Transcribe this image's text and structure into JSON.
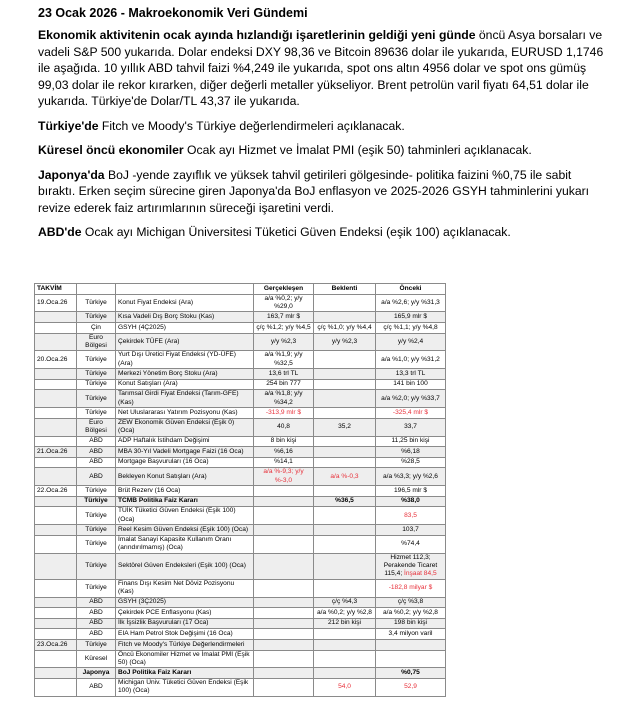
{
  "title": "23 Ocak 2026 - Makroekonomik Veri Gündemi",
  "p1": {
    "bold": "Ekonomik aktivitenin ocak ayında hızlandığı işaretlerinin geldiği yeni günde",
    "text": " öncü Asya borsaları ve vadeli S&P 500 yukarıda. Dolar endeksi DXY 98,36 ve Bitcoin 89636 dolar ile yukarıda, EURUSD 1,1746 ile aşağıda. 10 yıllık ABD tahvil faizi %4,249 ile yukarıda, spot ons altın 4956 dolar ve spot ons gümüş 99,03 dolar ile rekor kırarken, diğer değerli metaller yükseliyor. Brent petrolün varil fiyatı 64,51 dolar ile yukarıda. Türkiye'de Dolar/TL 43,37 ile yukarıda."
  },
  "p2": {
    "bold": "Türkiye'de",
    "text": " Fitch ve Moody's Türkiye değerlendirmeleri açıklanacak."
  },
  "p3": {
    "bold": "Küresel öncü ekonomiler",
    "text": " Ocak ayı Hizmet ve İmalat PMI (eşik 50) tahminleri açıklanacak."
  },
  "p4": {
    "bold": "Japonya'da",
    "text": " BoJ -yende zayıflık ve yüksek tahvil getirileri gölgesinde- politika faizini %0,75 ile sabit bıraktı. Erken seçim sürecine giren Japonya'da BoJ enflasyon ve 2025-2026 GSYH tahminlerini yukarı revize ederek faiz artırımlarının süreceği işaretini verdi."
  },
  "p5": {
    "bold": "ABD'de",
    "text": " Ocak ayı Michigan Üniversitesi Tüketici Güven Endeksi (eşik 100) açıklanacak."
  },
  "colors": {
    "red": "#e8303a",
    "shade": "#eeeeee"
  },
  "table": {
    "headers": [
      "TAKVİM",
      "",
      "",
      "Gerçekleşen",
      "Beklenti",
      "Önceki"
    ],
    "rows": [
      {
        "d": "19.Oca.26",
        "c": "Türkiye",
        "e": "Konut Fiyat Endeksi (Ara)",
        "a": "a/a %0,2; y/y %29,0",
        "x": "",
        "p": "a/a %2,6; y/y %31,3"
      },
      {
        "d": "",
        "c": "Türkiye",
        "e": "Kısa Vadeli Dış Borç Stoku (Kas)",
        "a": "163,7 mlr $",
        "x": "",
        "p": "165,9 mlr $"
      },
      {
        "d": "",
        "c": "Çin",
        "e": "GSYH (4Ç2025)",
        "a": "ç/ç %1,2; y/y %4,5",
        "x": "ç/ç %1,0; y/y %4,4",
        "p": "ç/ç %1,1; y/y %4,8"
      },
      {
        "d": "",
        "c": "Euro Bölgesi",
        "e": "Çekirdek TÜFE (Ara)",
        "a": "y/y %2,3",
        "x": "y/y %2,3",
        "p": "y/y %2,4"
      },
      {
        "d": "20.Oca.26",
        "c": "Türkiye",
        "e": "Yurt Dışı Üretici Fiyat Endeksi (YD-ÜFE) (Ara)",
        "a": "a/a %1,9; y/y %32,5",
        "x": "",
        "p": "a/a %1,0; y/y %31,2"
      },
      {
        "d": "",
        "c": "Türkiye",
        "e": "Merkezi Yönetim Borç Stoku (Ara)",
        "a": "13,6 trl TL",
        "x": "",
        "p": "13,3 trl TL"
      },
      {
        "d": "",
        "c": "Türkiye",
        "e": "Konut Satışları (Ara)",
        "a": "254 bin 777",
        "x": "",
        "p": "141 bin 100"
      },
      {
        "d": "",
        "c": "Türkiye",
        "e": "Tarımsal Girdi Fiyat Endeksi (Tarım-GFE) (Kas)",
        "a": "a/a %1,8; y/y %34,2",
        "x": "",
        "p": "a/a %2,0; y/y %33,7"
      },
      {
        "d": "",
        "c": "Türkiye",
        "e": "Net Uluslararası Yatırım Pozisyonu (Kas)",
        "a": "-313,9 mlr $",
        "x": "",
        "p": "-325,4 mlr $",
        "ra": true,
        "rp": true
      },
      {
        "d": "",
        "c": "Euro Bölgesi",
        "e": "ZEW Ekonomik Güven Endeksi (Eşik 0) (Oca)",
        "a": "40,8",
        "x": "35,2",
        "p": "33,7"
      },
      {
        "d": "",
        "c": "ABD",
        "e": "ADP Haftalık İstihdam Değişimi",
        "a": "8 bin kişi",
        "x": "",
        "p": "11,25 bin kişi"
      },
      {
        "d": "21.Oca.26",
        "c": "ABD",
        "e": "MBA 30-Yıl Vadeli Mortgage Faizi (16 Oca)",
        "a": "%6,16",
        "x": "",
        "p": "%6,18"
      },
      {
        "d": "",
        "c": "ABD",
        "e": "Mortgage Başvuruları (16 Oca)",
        "a": "%14,1",
        "x": "",
        "p": "%28,5"
      },
      {
        "d": "",
        "c": "ABD",
        "e": "Bekleyen Konut Satışları (Ara)",
        "a": "a/a %-9,3; y/y %-3,0",
        "x": "a/a %-0,3",
        "p": "a/a %3,3; y/y %2,6",
        "ra": true,
        "rx": true
      },
      {
        "d": "22.Oca.26",
        "c": "Türkiye",
        "e": "Brüt Rezerv (16 Oca)",
        "a": "",
        "x": "",
        "p": "196,5 mlr $"
      },
      {
        "d": "",
        "c": "Türkiye",
        "e": "TCMB Politika Faiz Kararı",
        "a": "",
        "x": "%36,5",
        "p": "%38,0",
        "b": true
      },
      {
        "d": "",
        "c": "Türkiye",
        "e": "TÜİK Tüketici Güven Endeksi (Eşik 100) (Oca)",
        "a": "",
        "x": "",
        "p": "83,5",
        "rp": true
      },
      {
        "d": "",
        "c": "Türkiye",
        "e": "Reel Kesim Güven Endeksi (Eşik 100) (Oca)",
        "a": "",
        "x": "",
        "p": "103,7"
      },
      {
        "d": "",
        "c": "Türkiye",
        "e": "İmalat Sanayi Kapasite Kullanım Oranı (arındırılmamış) (Oca)",
        "a": "",
        "x": "",
        "p": "%74,4"
      },
      {
        "d": "",
        "c": "Türkiye",
        "e": "Sektörel Güven Endeksleri (Eşik 100) (Oca)",
        "a": "",
        "x": "",
        "p": "Hizmet 112,3; Perakende Ticaret 115,4; ",
        "p2": "İnşaat 84,5"
      },
      {
        "d": "",
        "c": "Türkiye",
        "e": "Finans Dışı Kesim Net Döviz Pozisyonu (Kas)",
        "a": "",
        "x": "",
        "p": "-182,8 milyar $",
        "rp": true
      },
      {
        "d": "",
        "c": "ABD",
        "e": "GSYH (3Ç2025)",
        "a": "",
        "x": "ç/ç %4,3",
        "p": "ç/ç %3,8"
      },
      {
        "d": "",
        "c": "ABD",
        "e": "Çekirdek PCE Enflasyonu (Kas)",
        "a": "",
        "x": "a/a %0,2; y/y %2,8",
        "p": "a/a %0,2; y/y %2,8"
      },
      {
        "d": "",
        "c": "ABD",
        "e": "İlk İşsizlik Başvuruları (17 Oca)",
        "a": "",
        "x": "212 bin kişi",
        "p": "198 bin kişi"
      },
      {
        "d": "",
        "c": "ABD",
        "e": "EIA Ham Petrol Stok Değişimi (16 Oca)",
        "a": "",
        "x": "",
        "p": "3,4 milyon varil"
      },
      {
        "d": "23.Oca.26",
        "c": "Türkiye",
        "e": "Fitch ve Moody's Türkiye Değerlendirmeleri",
        "a": "",
        "x": "",
        "p": ""
      },
      {
        "d": "",
        "c": "Küresel",
        "e": "Öncü Ekonomiler Hizmet ve İmalat PMI (Eşik 50) (Oca)",
        "a": "",
        "x": "",
        "p": ""
      },
      {
        "d": "",
        "c": "Japonya",
        "e": "BoJ Politika Faiz Kararı",
        "a": "",
        "x": "",
        "p": "%0,75",
        "b": true
      },
      {
        "d": "",
        "c": "ABD",
        "e": "Michigan Üniv. Tüketici Güven Endeksi (Eşik 100) (Oca)",
        "a": "",
        "x": "54,0",
        "p": "52,9",
        "rx": true,
        "rp": true
      }
    ]
  }
}
